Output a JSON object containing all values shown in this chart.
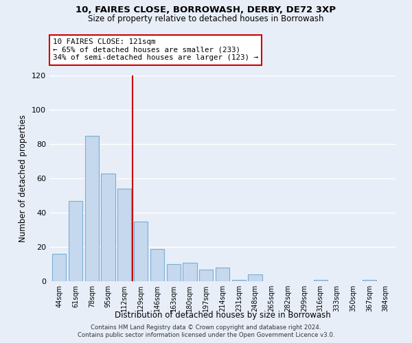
{
  "title": "10, FAIRES CLOSE, BORROWASH, DERBY, DE72 3XP",
  "subtitle": "Size of property relative to detached houses in Borrowash",
  "xlabel": "Distribution of detached houses by size in Borrowash",
  "ylabel": "Number of detached properties",
  "bar_color": "#c5d8ee",
  "bar_edge_color": "#7aadd4",
  "categories": [
    "44sqm",
    "61sqm",
    "78sqm",
    "95sqm",
    "112sqm",
    "129sqm",
    "146sqm",
    "163sqm",
    "180sqm",
    "197sqm",
    "214sqm",
    "231sqm",
    "248sqm",
    "265sqm",
    "282sqm",
    "299sqm",
    "316sqm",
    "333sqm",
    "350sqm",
    "367sqm",
    "384sqm"
  ],
  "values": [
    16,
    47,
    85,
    63,
    54,
    35,
    19,
    10,
    11,
    7,
    8,
    1,
    4,
    0,
    0,
    0,
    1,
    0,
    0,
    1,
    0
  ],
  "vline_color": "#cc0000",
  "annotation_line1": "10 FAIRES CLOSE: 121sqm",
  "annotation_line2": "← 65% of detached houses are smaller (233)",
  "annotation_line3": "34% of semi-detached houses are larger (123) →",
  "annotation_box_color": "#ffffff",
  "annotation_box_edge": "#cc0000",
  "ylim": [
    0,
    120
  ],
  "yticks": [
    0,
    20,
    40,
    60,
    80,
    100,
    120
  ],
  "footer_line1": "Contains HM Land Registry data © Crown copyright and database right 2024.",
  "footer_line2": "Contains public sector information licensed under the Open Government Licence v3.0.",
  "background_color": "#e8eef8"
}
